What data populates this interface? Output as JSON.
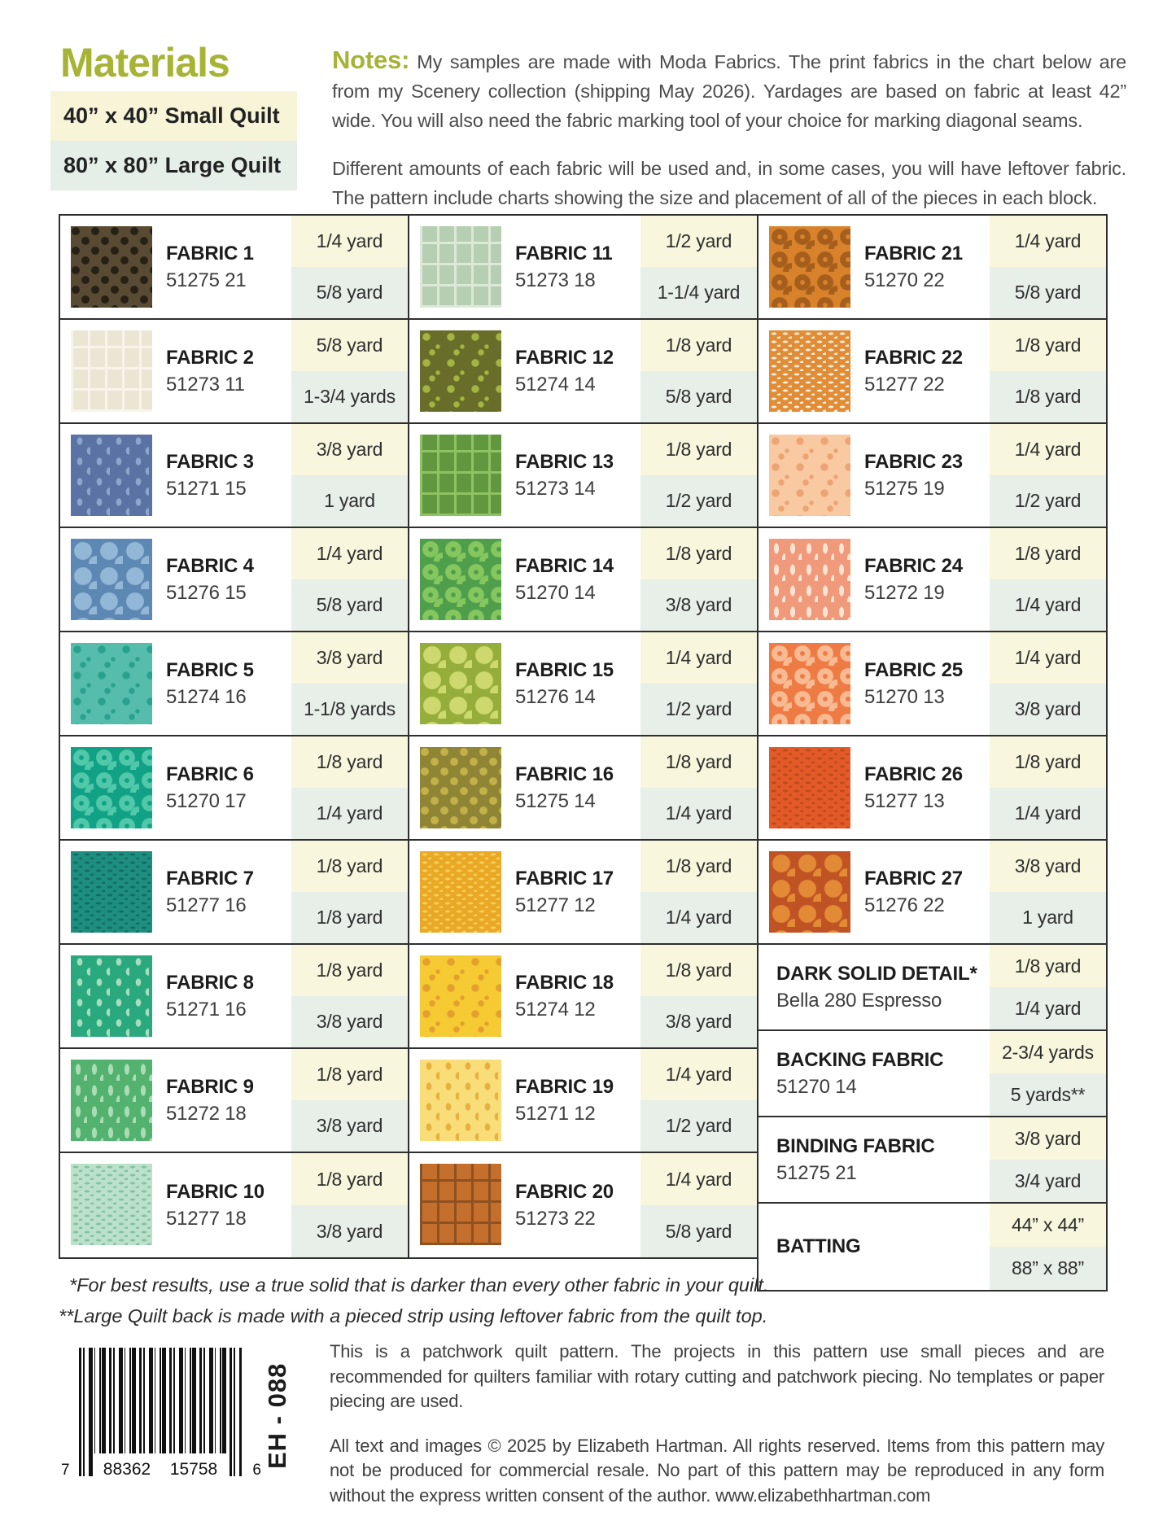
{
  "colors": {
    "accent_green": "#a6b335",
    "small_quilt_bg": "#f7f4d8",
    "large_quilt_bg": "#e6efe7",
    "yardage_small_bg": "#f8f6dc",
    "yardage_large_bg": "#e7efe8",
    "table_border": "#2e2e2e"
  },
  "header": {
    "title": "Materials",
    "size_options": [
      {
        "label": "40” x 40” Small Quilt"
      },
      {
        "label": "80” x 80” Large Quilt"
      }
    ],
    "notes_label": "Notes:",
    "notes_paragraph1": "My samples are made with Moda Fabrics. The print fabrics in the chart below are from my Scenery collection (shipping May 2026). Yardages are based on fabric at least 42” wide. You will also need the fabric marking tool of your choice for marking diagonal seams.",
    "notes_paragraph2": "Different amounts of each fabric will be used and, in some cases, you will have leftover fabric. The pattern include charts showing the size and placement of all of the pieces in each block."
  },
  "table": {
    "columns": [
      [
        {
          "name": "FABRIC 1",
          "sku": "51275 21",
          "small": "1/4 yard",
          "large": "5/8 yard",
          "swatch": {
            "pattern": "stars",
            "base": "#594a33",
            "accent": "#262015"
          }
        },
        {
          "name": "FABRIC 2",
          "sku": "51273 11",
          "small": "5/8 yard",
          "large": "1-3/4 yards",
          "swatch": {
            "pattern": "rects",
            "base": "#ebe5d3",
            "accent": "#f8f4ea"
          }
        },
        {
          "name": "FABRIC 3",
          "sku": "51271 15",
          "small": "3/8 yard",
          "large": "1 yard",
          "swatch": {
            "pattern": "tulips",
            "base": "#5b72a4",
            "accent": "#8aa6cc"
          }
        },
        {
          "name": "FABRIC 4",
          "sku": "51276 15",
          "small": "1/4 yard",
          "large": "5/8 yard",
          "swatch": {
            "pattern": "flowers",
            "base": "#5e88b4",
            "accent": "#93b7d6"
          }
        },
        {
          "name": "FABRIC 5",
          "sku": "51274 16",
          "small": "3/8 yard",
          "large": "1-1/8 yards",
          "swatch": {
            "pattern": "sparkles",
            "base": "#56bdad",
            "accent": "#2aa18e"
          }
        },
        {
          "name": "FABRIC 6",
          "sku": "51270 17",
          "small": "1/8 yard",
          "large": "1/4 yard",
          "swatch": {
            "pattern": "daisies",
            "base": "#11a185",
            "accent": "#52c8aa"
          }
        },
        {
          "name": "FABRIC 7",
          "sku": "51277 16",
          "small": "1/8 yard",
          "large": "1/8 yard",
          "swatch": {
            "pattern": "dashes",
            "base": "#1e8e80",
            "accent": "#116e63"
          }
        },
        {
          "name": "FABRIC 8",
          "sku": "51271 16",
          "small": "1/8 yard",
          "large": "3/8 yard",
          "swatch": {
            "pattern": "tulips",
            "base": "#2ba97e",
            "accent": "#a6dcc0"
          }
        },
        {
          "name": "FABRIC 9",
          "sku": "51272 18",
          "small": "1/8 yard",
          "large": "3/8 yard",
          "swatch": {
            "pattern": "leaves",
            "base": "#54b271",
            "accent": "#abddb5"
          }
        },
        {
          "name": "FABRIC 10",
          "sku": "51277 18",
          "small": "1/8 yard",
          "large": "3/8 yard",
          "swatch": {
            "pattern": "dashes",
            "base": "#bce1ca",
            "accent": "#84c2a0"
          }
        }
      ],
      [
        {
          "name": "FABRIC 11",
          "sku": "51273 18",
          "small": "1/2 yard",
          "large": "1-1/4 yard",
          "swatch": {
            "pattern": "rects",
            "base": "#b6ceb2",
            "accent": "#dce9d6"
          }
        },
        {
          "name": "FABRIC 12",
          "sku": "51274 14",
          "small": "1/8 yard",
          "large": "5/8 yard",
          "swatch": {
            "pattern": "sparkles",
            "base": "#696d2a",
            "accent": "#a3b442"
          }
        },
        {
          "name": "FABRIC 13",
          "sku": "51273 14",
          "small": "1/8 yard",
          "large": "1/2 yard",
          "swatch": {
            "pattern": "rects",
            "base": "#60973f",
            "accent": "#8fc263"
          }
        },
        {
          "name": "FABRIC 14",
          "sku": "51270 14",
          "small": "1/8 yard",
          "large": "3/8 yard",
          "swatch": {
            "pattern": "daisies",
            "base": "#4f9e4c",
            "accent": "#85c75e"
          }
        },
        {
          "name": "FABRIC 15",
          "sku": "51276 14",
          "small": "1/4 yard",
          "large": "1/2 yard",
          "swatch": {
            "pattern": "flowers",
            "base": "#95ad3b",
            "accent": "#cdd96e"
          }
        },
        {
          "name": "FABRIC 16",
          "sku": "51275 14",
          "small": "1/8 yard",
          "large": "1/4 yard",
          "swatch": {
            "pattern": "stars",
            "base": "#8f8534",
            "accent": "#c2b148"
          }
        },
        {
          "name": "FABRIC 17",
          "sku": "51277 12",
          "small": "1/8 yard",
          "large": "1/4 yard",
          "swatch": {
            "pattern": "dashes",
            "base": "#eaa827",
            "accent": "#f7cf55"
          }
        },
        {
          "name": "FABRIC 18",
          "sku": "51274 12",
          "small": "1/8 yard",
          "large": "3/8 yard",
          "swatch": {
            "pattern": "sparkles",
            "base": "#f5ca32",
            "accent": "#e3a02f"
          }
        },
        {
          "name": "FABRIC 19",
          "sku": "51271 12",
          "small": "1/4 yard",
          "large": "1/2 yard",
          "swatch": {
            "pattern": "tulips",
            "base": "#f8dd79",
            "accent": "#e8b03e"
          }
        },
        {
          "name": "FABRIC 20",
          "sku": "51273 22",
          "small": "1/4 yard",
          "large": "5/8 yard",
          "swatch": {
            "pattern": "rects",
            "base": "#c4702c",
            "accent": "#8e5122"
          }
        }
      ],
      [
        {
          "name": "FABRIC 21",
          "sku": "51270 22",
          "small": "1/4 yard",
          "large": "5/8 yard",
          "swatch": {
            "pattern": "daisies",
            "base": "#d8832b",
            "accent": "#a65e1d"
          }
        },
        {
          "name": "FABRIC 22",
          "sku": "51277 22",
          "small": "1/8 yard",
          "large": "1/8 yard",
          "swatch": {
            "pattern": "dashes",
            "base": "#e18c36",
            "accent": "#faeedd"
          }
        },
        {
          "name": "FABRIC 23",
          "sku": "51275 19",
          "small": "1/4 yard",
          "large": "1/2 yard",
          "swatch": {
            "pattern": "sparkles",
            "base": "#f9c9a2",
            "accent": "#eda474"
          }
        },
        {
          "name": "FABRIC 24",
          "sku": "51272 19",
          "small": "1/8 yard",
          "large": "1/4 yard",
          "swatch": {
            "pattern": "leaves",
            "base": "#f0997b",
            "accent": "#fbe4d4"
          }
        },
        {
          "name": "FABRIC 25",
          "sku": "51270 13",
          "small": "1/4 yard",
          "large": "3/8 yard",
          "swatch": {
            "pattern": "daisies",
            "base": "#ee7a44",
            "accent": "#f8ba92"
          }
        },
        {
          "name": "FABRIC 26",
          "sku": "51277 13",
          "small": "1/8 yard",
          "large": "1/4 yard",
          "swatch": {
            "pattern": "dashes",
            "base": "#e25a27",
            "accent": "#bf4a1b"
          }
        },
        {
          "name": "FABRIC 27",
          "sku": "51276 22",
          "small": "3/8 yard",
          "large": "1 yard",
          "swatch": {
            "pattern": "flowers",
            "base": "#c05323",
            "accent": "#e28a35"
          }
        }
      ]
    ],
    "extras": [
      {
        "name": "DARK SOLID DETAIL*",
        "sub": "Bella 280 Espresso",
        "small": "1/8 yard",
        "large": "1/4 yard"
      },
      {
        "name": "BACKING FABRIC",
        "sub": "51270 14",
        "small": "2-3/4 yards",
        "large": "5 yards**"
      },
      {
        "name": "BINDING FABRIC",
        "sub": "51275 21",
        "small": "3/8 yard",
        "large": "3/4 yard"
      },
      {
        "name": "BATTING",
        "sub": "",
        "small": "44” x 44”",
        "large": "88” x 88”"
      }
    ]
  },
  "footnotes": [
    "*For best results, use a true solid that is darker than every other fabric in your quilt.",
    "**Large Quilt back is made with a pieced strip using leftover fabric from the quilt top."
  ],
  "footer": {
    "barcode": {
      "left_digit": "7",
      "group1": "88362",
      "group2": "15758",
      "right_digit": "6"
    },
    "pattern_code": "EH - 088",
    "paragraph1": "This is a patchwork quilt pattern. The projects in this pattern use small pieces and are recommended for quilters familiar with rotary cutting and patchwork piecing. No templates or paper piecing are used.",
    "paragraph2": "All text and images © 2025 by Elizabeth Hartman. All rights reserved. Items from this pattern may not be produced for commercial resale. No part of this pattern may be reproduced in any form without the express written consent of the author. www.elizabethhartman.com"
  }
}
